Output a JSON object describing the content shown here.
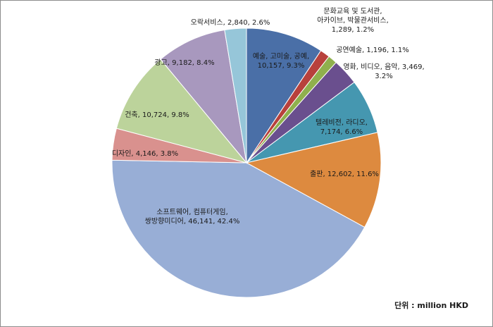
{
  "chart_data": {
    "type": "pie",
    "title": "",
    "unit_note": "단위 : million HKD",
    "start_angle_deg": -90,
    "direction": "clockwise",
    "slices": [
      {
        "lines": [
          "예술, 고미술, 공예,",
          "10,157, 9.3%"
        ],
        "value": 10157,
        "percent": 9.3,
        "color": "#4a6fa7"
      },
      {
        "lines": [
          "문화교육 및 도서관,",
          "아카이브, 박물관서비스,",
          "1,289, 1.2%"
        ],
        "value": 1289,
        "percent": 1.2,
        "color": "#b8413c"
      },
      {
        "lines": [
          "공연예술, 1,196, 1.1%"
        ],
        "value": 1196,
        "percent": 1.1,
        "color": "#8fb04d"
      },
      {
        "lines": [
          "영화, 비디오, 음악, 3,469,",
          "3.2%"
        ],
        "value": 3469,
        "percent": 3.2,
        "color": "#6a4f8e"
      },
      {
        "lines": [
          "텔레비전, 라디오,",
          "7,174, 6.6%"
        ],
        "value": 7174,
        "percent": 6.6,
        "color": "#4597b0"
      },
      {
        "lines": [
          "출판, 12,602, 11.6%"
        ],
        "value": 12602,
        "percent": 11.6,
        "color": "#dd8a3f"
      },
      {
        "lines": [
          "소프트웨어, 컴퓨터게임,",
          "쌍방향미디어, 46,141, 42.4%"
        ],
        "value": 46141,
        "percent": 42.4,
        "color": "#98aed6"
      },
      {
        "lines": [
          "디자인, 4,146, 3.8%"
        ],
        "value": 4146,
        "percent": 3.8,
        "color": "#d9918e"
      },
      {
        "lines": [
          "건축, 10,724, 9.8%"
        ],
        "value": 10724,
        "percent": 9.8,
        "color": "#bcd39b"
      },
      {
        "lines": [
          "광고, 9,182, 8.4%"
        ],
        "value": 9182,
        "percent": 8.4,
        "color": "#a898be"
      },
      {
        "lines": [
          "오락서비스, 2,840, 2.6%"
        ],
        "value": 2840,
        "percent": 2.6,
        "color": "#96c6d9"
      }
    ]
  }
}
